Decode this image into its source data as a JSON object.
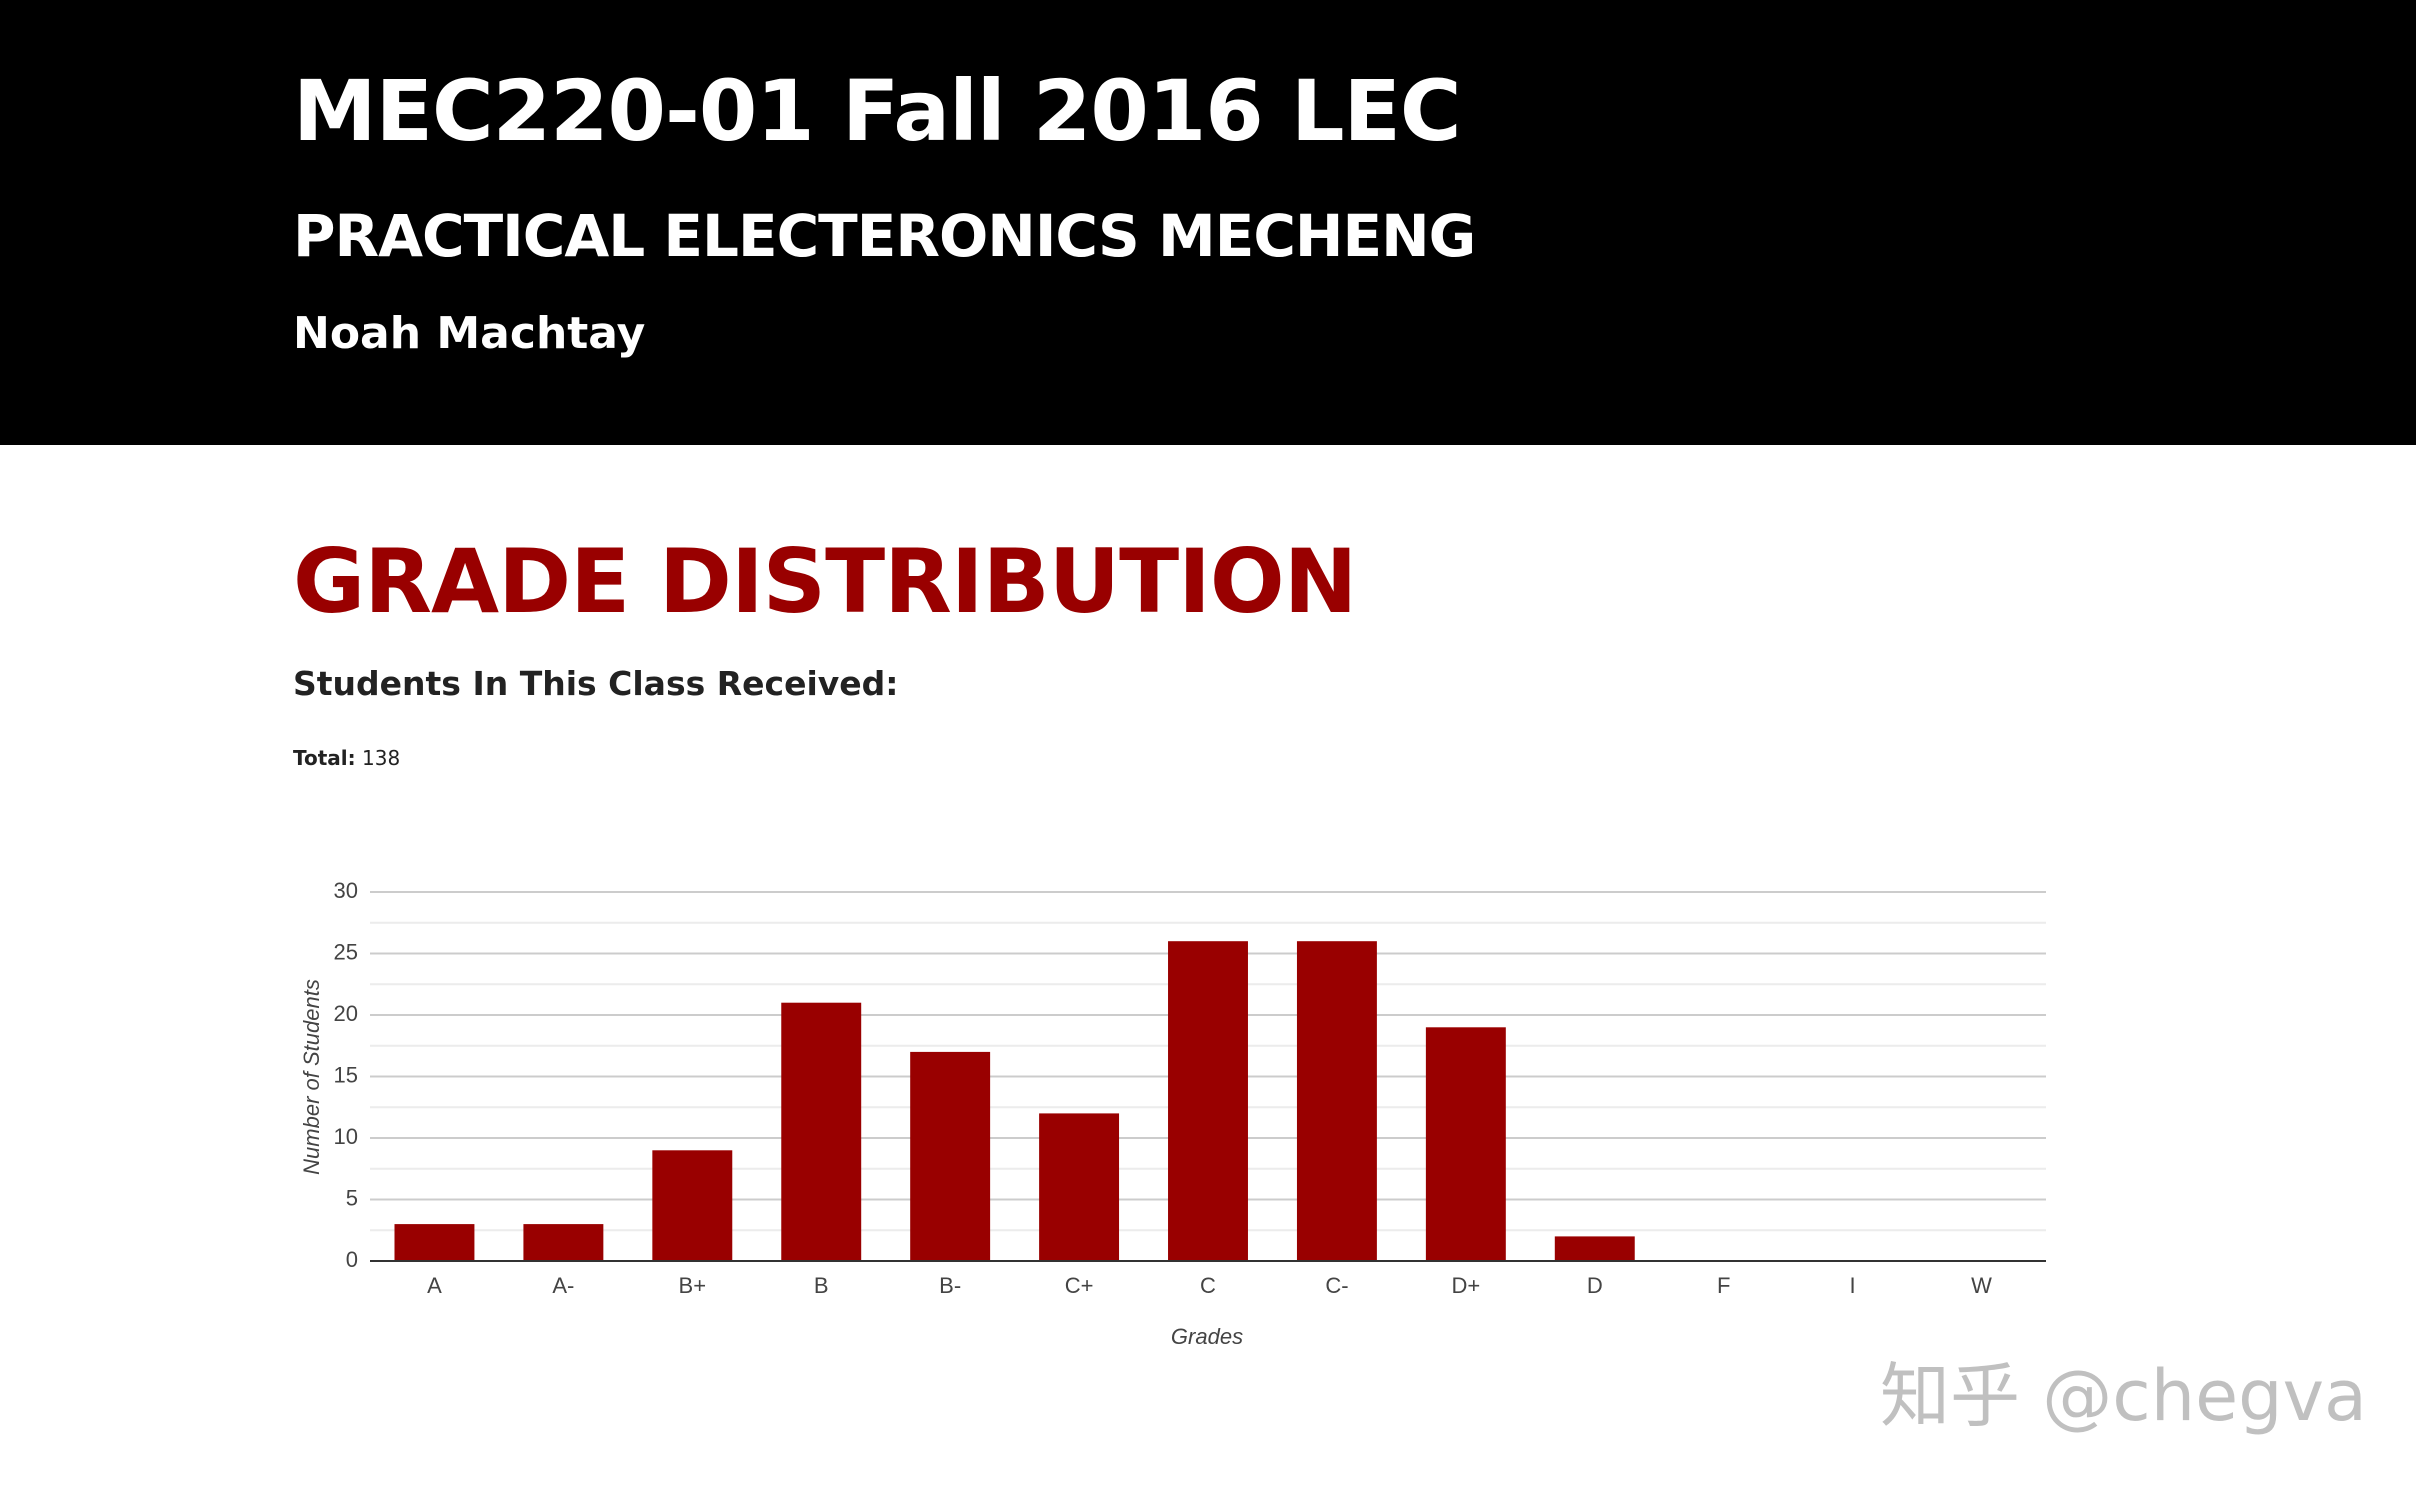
{
  "header": {
    "title": "MEC220-01 Fall 2016 LEC",
    "subtitle": "PRACTICAL ELECTERONICS MECHENG",
    "instructor": "Noah Machtay"
  },
  "section": {
    "title": "GRADE DISTRIBUTION",
    "subtitle": "Students In This Class Received:",
    "total_label": "Total:",
    "total": 138
  },
  "chart_data": {
    "type": "bar",
    "x_label": "Grades",
    "y_label": "Number of Students",
    "categories": [
      "A",
      "A-",
      "B+",
      "B",
      "B-",
      "C+",
      "C",
      "C-",
      "D+",
      "D",
      "F",
      "I",
      "W"
    ],
    "values": [
      3,
      3,
      9,
      21,
      17,
      12,
      26,
      26,
      19,
      2,
      0,
      0,
      0
    ],
    "color": "#990000",
    "ylim": [
      0,
      30
    ],
    "yticks": [
      0,
      5,
      10,
      15,
      20,
      25,
      30
    ],
    "grid": true,
    "minor_grid": true
  },
  "watermark": "知乎 @chegva"
}
